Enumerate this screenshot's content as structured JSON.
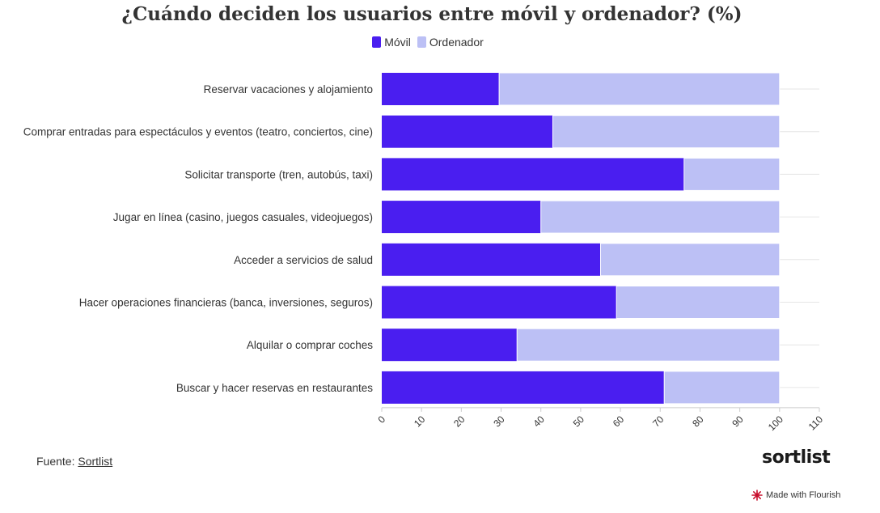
{
  "chart_data": {
    "type": "bar",
    "orientation": "horizontal",
    "stacked": true,
    "title": "¿Cuándo deciden los usuarios entre móvil y ordenador? (%)",
    "categories": [
      "Reservar vacaciones y alojamiento",
      "Comprar entradas para espectáculos y eventos (teatro, conciertos, cine)",
      "Solicitar transporte (tren, autobús, taxi)",
      "Jugar en línea (casino, juegos casuales, videojuegos)",
      "Acceder a servicios de salud",
      "Hacer operaciones financieras (banca, inversiones, seguros)",
      "Alquilar o comprar coches",
      "Buscar y hacer reservas en restaurantes"
    ],
    "series": [
      {
        "name": "Móvil",
        "color": "#4a1ef0",
        "values": [
          29.5,
          43,
          76,
          40,
          55,
          59,
          34,
          71
        ]
      },
      {
        "name": "Ordenador",
        "color": "#bcc0f5",
        "values": [
          70.5,
          57,
          24,
          60,
          45,
          41,
          66,
          29
        ]
      }
    ],
    "xlim": [
      0,
      110
    ],
    "xticks": [
      "0",
      "10",
      "20",
      "30",
      "40",
      "50",
      "60",
      "70",
      "80",
      "90",
      "100",
      "110"
    ],
    "grid": true,
    "legend_position": "top-center"
  },
  "footer": {
    "source_prefix": "Fuente: ",
    "source_link": "Sortlist",
    "brand": "sortlist",
    "made_with": "Made with Flourish"
  }
}
